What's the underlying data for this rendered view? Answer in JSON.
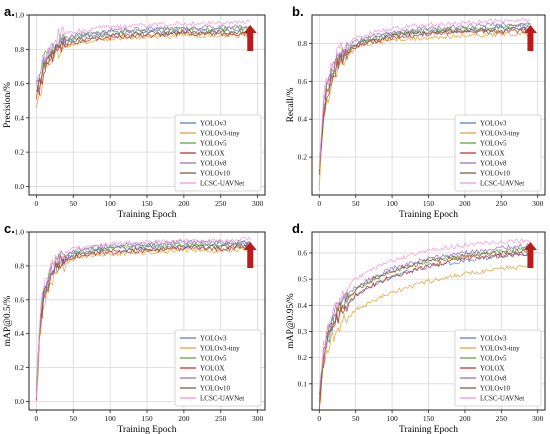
{
  "figure": {
    "colors": {
      "YOLOv3": "#5b7fbf",
      "YOLOv3-tiny": "#e8a53a",
      "YOLOv5": "#5aa84b",
      "YOLOX": "#c0392b",
      "YOLOv8": "#9b6fc6",
      "YOLOv10": "#8c5a3c",
      "LCSC-UAVNet": "#f29ad8",
      "arrow": "#b81c1c",
      "grid": "#d8d8d8",
      "axis": "#222222"
    }
  },
  "chart_data": [
    {
      "type": "line",
      "panel": "a.",
      "xlabel": "Training Epoch",
      "ylabel": "Precision/%",
      "xlim": [
        -10,
        310
      ],
      "ylim": [
        -0.05,
        1.0
      ],
      "xticks": [
        0,
        50,
        100,
        150,
        200,
        250,
        300
      ],
      "yticks": [
        0.0,
        0.2,
        0.4,
        0.6,
        0.8,
        1.0
      ],
      "ytick_labels": [
        "0.0",
        "0.2",
        "0.4",
        "0.6",
        "0.8",
        "1.0"
      ],
      "grid": true,
      "legend_position": "lower-right",
      "x": [
        0,
        5,
        10,
        20,
        30,
        50,
        75,
        100,
        150,
        200,
        250,
        290
      ],
      "series": [
        {
          "name": "YOLOv3",
          "values": [
            0.58,
            0.62,
            0.72,
            0.79,
            0.83,
            0.86,
            0.88,
            0.89,
            0.9,
            0.9,
            0.91,
            0.91
          ]
        },
        {
          "name": "YOLOv3-tiny",
          "values": [
            0.5,
            0.55,
            0.66,
            0.74,
            0.79,
            0.83,
            0.85,
            0.86,
            0.87,
            0.88,
            0.88,
            0.88
          ]
        },
        {
          "name": "YOLOv5",
          "values": [
            0.55,
            0.63,
            0.73,
            0.8,
            0.84,
            0.87,
            0.89,
            0.9,
            0.91,
            0.92,
            0.92,
            0.92
          ]
        },
        {
          "name": "YOLOX",
          "values": [
            0.52,
            0.58,
            0.68,
            0.76,
            0.8,
            0.84,
            0.86,
            0.87,
            0.88,
            0.89,
            0.89,
            0.89
          ]
        },
        {
          "name": "YOLOv8",
          "values": [
            0.6,
            0.64,
            0.74,
            0.81,
            0.85,
            0.88,
            0.9,
            0.91,
            0.92,
            0.92,
            0.93,
            0.93
          ]
        },
        {
          "name": "YOLOv10",
          "values": [
            0.54,
            0.6,
            0.7,
            0.78,
            0.82,
            0.85,
            0.87,
            0.88,
            0.89,
            0.9,
            0.9,
            0.9
          ]
        },
        {
          "name": "LCSC-UAVNet",
          "values": [
            0.62,
            0.67,
            0.77,
            0.84,
            0.88,
            0.9,
            0.92,
            0.93,
            0.94,
            0.95,
            0.95,
            0.96
          ]
        }
      ]
    },
    {
      "type": "line",
      "panel": "b.",
      "xlabel": "Training Epoch",
      "ylabel": "Recall/%",
      "xlim": [
        -10,
        310
      ],
      "ylim": [
        0.0,
        0.95
      ],
      "xticks": [
        0,
        50,
        100,
        150,
        200,
        250,
        300
      ],
      "yticks": [
        0.2,
        0.4,
        0.6,
        0.8
      ],
      "ytick_labels": [
        "0.2",
        "0.4",
        "0.6",
        "0.8"
      ],
      "grid": true,
      "legend_position": "lower-right",
      "x": [
        0,
        5,
        10,
        20,
        30,
        50,
        75,
        100,
        150,
        200,
        250,
        290
      ],
      "series": [
        {
          "name": "YOLOv3",
          "values": [
            0.1,
            0.4,
            0.55,
            0.67,
            0.73,
            0.79,
            0.82,
            0.84,
            0.86,
            0.87,
            0.88,
            0.89
          ]
        },
        {
          "name": "YOLOv3-tiny",
          "values": [
            0.05,
            0.35,
            0.5,
            0.63,
            0.7,
            0.77,
            0.8,
            0.82,
            0.83,
            0.84,
            0.85,
            0.85
          ]
        },
        {
          "name": "YOLOv5",
          "values": [
            0.1,
            0.42,
            0.56,
            0.68,
            0.74,
            0.8,
            0.83,
            0.85,
            0.87,
            0.88,
            0.89,
            0.9
          ]
        },
        {
          "name": "YOLOX",
          "values": [
            0.08,
            0.38,
            0.53,
            0.65,
            0.72,
            0.78,
            0.81,
            0.83,
            0.85,
            0.86,
            0.86,
            0.87
          ]
        },
        {
          "name": "YOLOv8",
          "values": [
            0.12,
            0.44,
            0.57,
            0.69,
            0.75,
            0.81,
            0.84,
            0.86,
            0.88,
            0.89,
            0.9,
            0.9
          ]
        },
        {
          "name": "YOLOv10",
          "values": [
            0.09,
            0.4,
            0.54,
            0.66,
            0.73,
            0.79,
            0.82,
            0.84,
            0.86,
            0.87,
            0.87,
            0.88
          ]
        },
        {
          "name": "LCSC-UAVNet",
          "values": [
            0.14,
            0.46,
            0.6,
            0.71,
            0.77,
            0.83,
            0.86,
            0.88,
            0.9,
            0.91,
            0.92,
            0.92
          ]
        }
      ]
    },
    {
      "type": "line",
      "panel": "c.",
      "xlabel": "Training Epoch",
      "ylabel": "mAP@0.5/%",
      "xlim": [
        -10,
        310
      ],
      "ylim": [
        -0.05,
        1.0
      ],
      "xticks": [
        0,
        50,
        100,
        150,
        200,
        250,
        300
      ],
      "yticks": [
        0.0,
        0.2,
        0.4,
        0.6,
        0.8,
        1.0
      ],
      "ytick_labels": [
        "0.0",
        "0.2",
        "0.4",
        "0.6",
        "0.8",
        "1.0"
      ],
      "grid": true,
      "legend_position": "lower-right",
      "x": [
        0,
        5,
        10,
        20,
        30,
        50,
        75,
        100,
        150,
        200,
        250,
        290
      ],
      "series": [
        {
          "name": "YOLOv3",
          "values": [
            0.05,
            0.45,
            0.62,
            0.75,
            0.82,
            0.87,
            0.89,
            0.9,
            0.91,
            0.92,
            0.92,
            0.93
          ]
        },
        {
          "name": "YOLOv3-tiny",
          "values": [
            0.03,
            0.4,
            0.58,
            0.72,
            0.79,
            0.84,
            0.86,
            0.87,
            0.88,
            0.89,
            0.89,
            0.9
          ]
        },
        {
          "name": "YOLOv5",
          "values": [
            0.05,
            0.46,
            0.63,
            0.76,
            0.83,
            0.88,
            0.9,
            0.91,
            0.92,
            0.93,
            0.93,
            0.94
          ]
        },
        {
          "name": "YOLOX",
          "values": [
            0.04,
            0.42,
            0.6,
            0.74,
            0.8,
            0.85,
            0.87,
            0.88,
            0.89,
            0.9,
            0.9,
            0.91
          ]
        },
        {
          "name": "YOLOv8",
          "values": [
            0.06,
            0.48,
            0.65,
            0.77,
            0.84,
            0.89,
            0.91,
            0.92,
            0.93,
            0.94,
            0.94,
            0.94
          ]
        },
        {
          "name": "YOLOv10",
          "values": [
            0.05,
            0.44,
            0.61,
            0.75,
            0.81,
            0.86,
            0.88,
            0.89,
            0.9,
            0.91,
            0.91,
            0.92
          ]
        },
        {
          "name": "LCSC-UAVNet",
          "values": [
            0.07,
            0.5,
            0.67,
            0.79,
            0.86,
            0.9,
            0.92,
            0.93,
            0.94,
            0.95,
            0.95,
            0.96
          ]
        }
      ]
    },
    {
      "type": "line",
      "panel": "d.",
      "xlabel": "Training Epoch",
      "ylabel": "mAP@0.95/%",
      "xlim": [
        -10,
        310
      ],
      "ylim": [
        0.0,
        0.68
      ],
      "xticks": [
        0,
        50,
        100,
        150,
        200,
        250,
        300
      ],
      "yticks": [
        0.1,
        0.2,
        0.3,
        0.4,
        0.5,
        0.6
      ],
      "ytick_labels": [
        "0.1",
        "0.2",
        "0.3",
        "0.4",
        "0.5",
        "0.6"
      ],
      "grid": true,
      "legend_position": "lower-right",
      "x": [
        0,
        5,
        10,
        20,
        30,
        50,
        75,
        100,
        150,
        200,
        250,
        290
      ],
      "series": [
        {
          "name": "YOLOv3",
          "values": [
            0.02,
            0.18,
            0.26,
            0.33,
            0.38,
            0.44,
            0.48,
            0.51,
            0.55,
            0.57,
            0.59,
            0.6
          ]
        },
        {
          "name": "YOLOv3-tiny",
          "values": [
            0.02,
            0.15,
            0.22,
            0.29,
            0.33,
            0.38,
            0.42,
            0.45,
            0.49,
            0.52,
            0.54,
            0.55
          ]
        },
        {
          "name": "YOLOv5",
          "values": [
            0.03,
            0.19,
            0.27,
            0.35,
            0.4,
            0.46,
            0.5,
            0.53,
            0.57,
            0.59,
            0.61,
            0.62
          ]
        },
        {
          "name": "YOLOX",
          "values": [
            0.02,
            0.17,
            0.25,
            0.33,
            0.38,
            0.44,
            0.48,
            0.51,
            0.55,
            0.58,
            0.59,
            0.6
          ]
        },
        {
          "name": "YOLOv8",
          "values": [
            0.03,
            0.2,
            0.28,
            0.36,
            0.41,
            0.47,
            0.51,
            0.54,
            0.58,
            0.6,
            0.62,
            0.63
          ]
        },
        {
          "name": "YOLOv10",
          "values": [
            0.03,
            0.19,
            0.27,
            0.35,
            0.4,
            0.46,
            0.5,
            0.53,
            0.57,
            0.59,
            0.6,
            0.61
          ]
        },
        {
          "name": "LCSC-UAVNet",
          "values": [
            0.04,
            0.22,
            0.3,
            0.38,
            0.44,
            0.5,
            0.54,
            0.57,
            0.61,
            0.63,
            0.64,
            0.65
          ]
        }
      ]
    }
  ]
}
